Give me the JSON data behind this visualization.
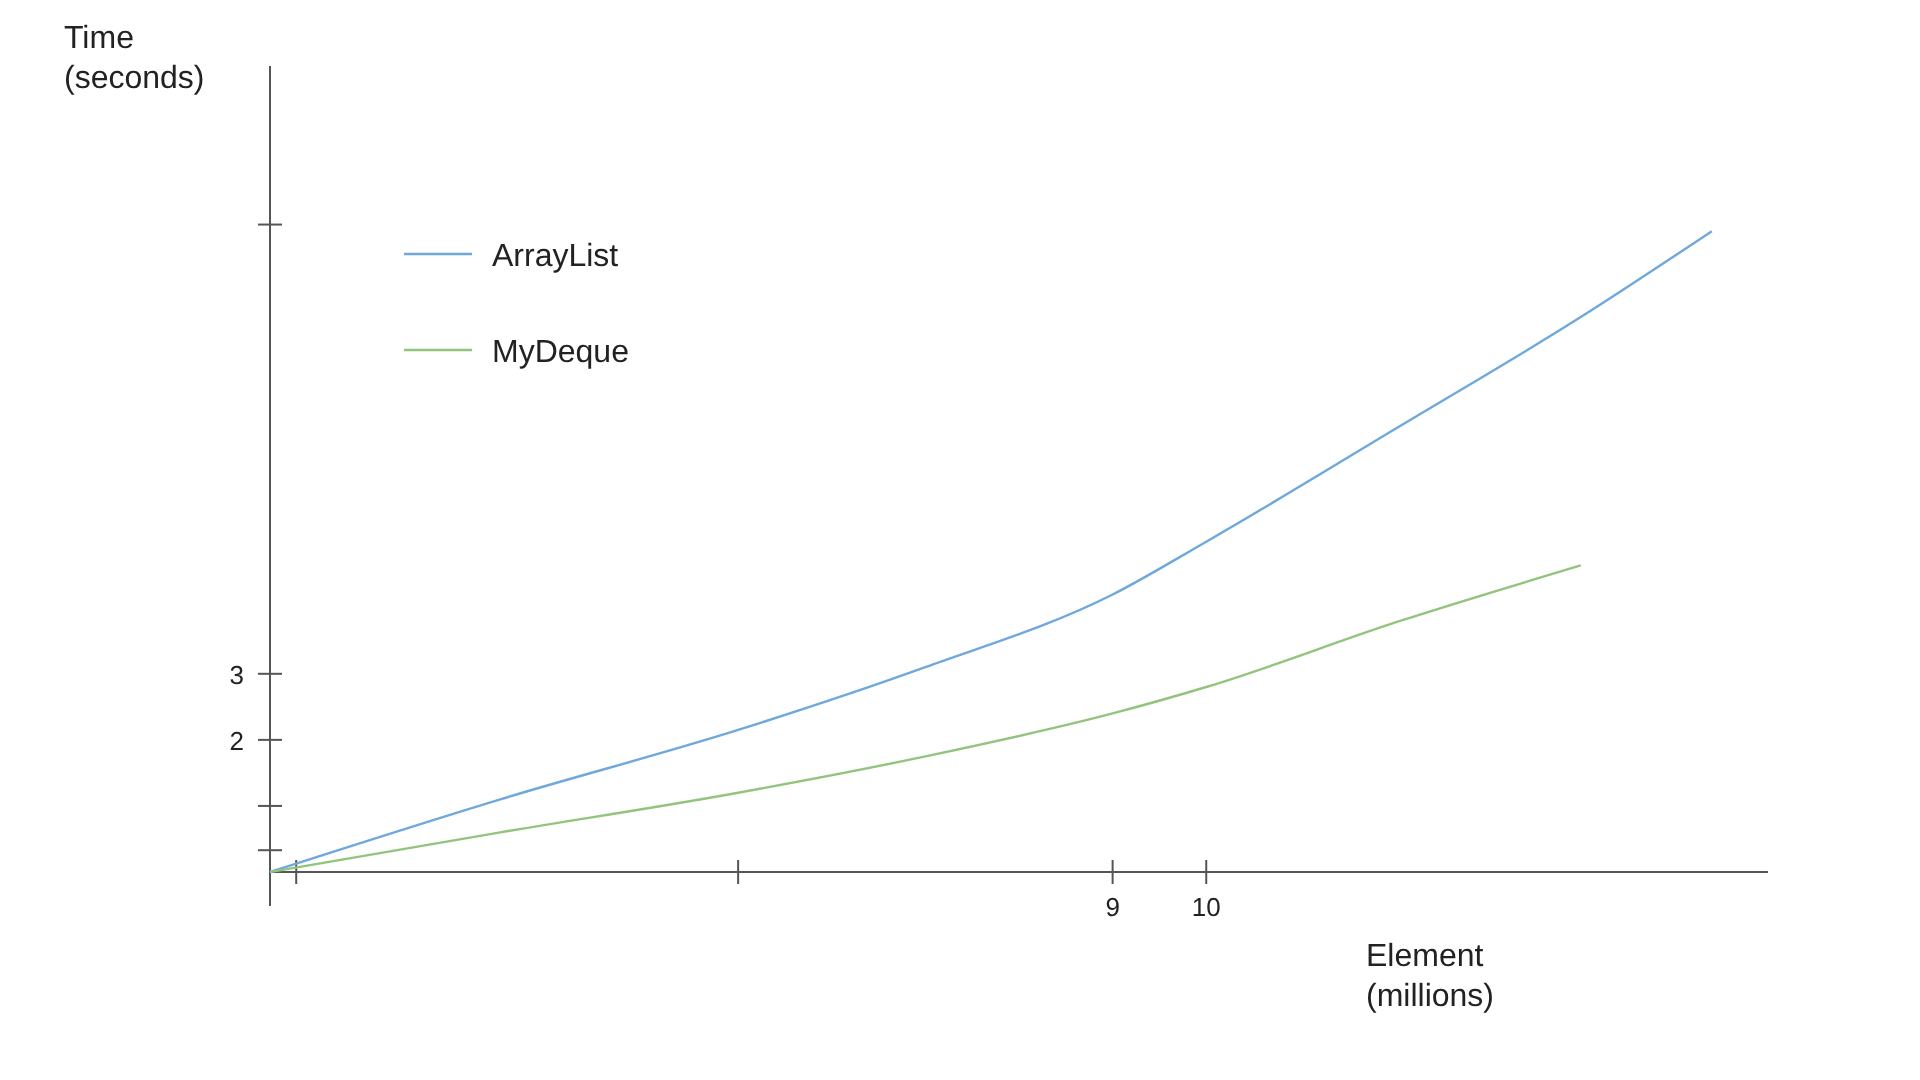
{
  "chart_data": {
    "type": "line",
    "xlabel": "Element (millions)",
    "ylabel": "Time (seconds)",
    "xlim": [
      0,
      16
    ],
    "ylim": [
      0,
      12.2
    ],
    "xticks": [
      {
        "value": 0.28,
        "label": null
      },
      {
        "value": 5,
        "label": null
      },
      9,
      10
    ],
    "yticks": [
      {
        "value": 0.33,
        "label": null
      },
      {
        "value": 1,
        "label": null
      },
      2,
      3,
      {
        "value": 9.8,
        "label": null
      }
    ],
    "series": [
      {
        "name": "ArrayList",
        "color": "#6fa8dc",
        "x": [
          0,
          2.46,
          5,
          7,
          9,
          10,
          12.07,
          14,
          15.4
        ],
        "values": [
          0,
          1.1,
          2.15,
          3.1,
          4.2,
          5.0,
          6.75,
          8.4,
          9.7
        ]
      },
      {
        "name": "MyDeque",
        "color": "#93c47d",
        "x": [
          0,
          2.46,
          5,
          7,
          9,
          10,
          12.07,
          14
        ],
        "values": [
          0,
          0.6,
          1.2,
          1.75,
          2.4,
          2.8,
          3.8,
          4.64
        ]
      }
    ],
    "legend": "top left",
    "grid": false,
    "marker": "none",
    "line_style": "solid"
  }
}
